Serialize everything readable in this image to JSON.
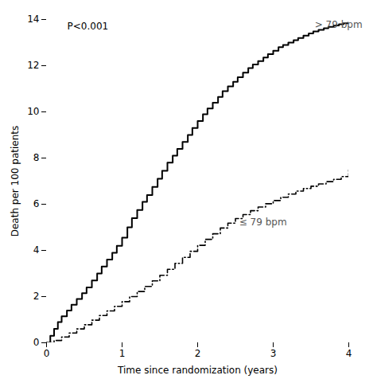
{
  "chart_data": {
    "type": "step",
    "xlabel": "Time since randomization (years)",
    "ylabel": "Death per 100 patients",
    "xlim": [
      0,
      4
    ],
    "ylim": [
      0,
      14
    ],
    "xticks": [
      0,
      1,
      2,
      3,
      4
    ],
    "yticks": [
      0,
      2,
      4,
      6,
      8,
      10,
      12,
      14
    ],
    "grid": false,
    "series": [
      {
        "color": "#000000",
        "line_style": "solid",
        "x": [
          0.0,
          0.05,
          0.1,
          0.15,
          0.2,
          0.27,
          0.33,
          0.4,
          0.47,
          0.53,
          0.6,
          0.67,
          0.73,
          0.8,
          0.87,
          0.93,
          1.0,
          1.07,
          1.13,
          1.2,
          1.27,
          1.33,
          1.4,
          1.47,
          1.53,
          1.6,
          1.67,
          1.73,
          1.8,
          1.87,
          1.93,
          2.0,
          2.07,
          2.13,
          2.2,
          2.27,
          2.33,
          2.4,
          2.47,
          2.53,
          2.6,
          2.67,
          2.73,
          2.8,
          2.87,
          2.93,
          3.0,
          3.07,
          3.13,
          3.2,
          3.27,
          3.33,
          3.4,
          3.47,
          3.53,
          3.6,
          3.67,
          3.73,
          3.8,
          3.87,
          3.93,
          4.0
        ],
        "values": [
          0.0,
          0.3,
          0.6,
          0.9,
          1.15,
          1.4,
          1.65,
          1.9,
          2.15,
          2.4,
          2.7,
          3.0,
          3.3,
          3.6,
          3.9,
          4.2,
          4.55,
          5.0,
          5.4,
          5.75,
          6.1,
          6.4,
          6.75,
          7.1,
          7.45,
          7.8,
          8.1,
          8.4,
          8.7,
          9.0,
          9.3,
          9.6,
          9.9,
          10.15,
          10.4,
          10.65,
          10.9,
          11.1,
          11.3,
          11.5,
          11.7,
          11.9,
          12.05,
          12.2,
          12.35,
          12.5,
          12.65,
          12.8,
          12.9,
          13.0,
          13.1,
          13.2,
          13.3,
          13.4,
          13.48,
          13.55,
          13.62,
          13.68,
          13.74,
          13.79,
          13.84,
          13.88
        ]
      },
      {
        "color": "#000000",
        "line_style": "dashdot",
        "x": [
          0.0,
          0.1,
          0.2,
          0.3,
          0.4,
          0.5,
          0.6,
          0.7,
          0.8,
          0.9,
          1.0,
          1.1,
          1.2,
          1.3,
          1.4,
          1.5,
          1.6,
          1.7,
          1.8,
          1.9,
          2.0,
          2.1,
          2.2,
          2.3,
          2.4,
          2.5,
          2.6,
          2.7,
          2.8,
          2.9,
          3.0,
          3.1,
          3.2,
          3.3,
          3.4,
          3.5,
          3.6,
          3.7,
          3.8,
          3.9,
          4.0
        ],
        "values": [
          0.0,
          0.1,
          0.25,
          0.42,
          0.6,
          0.78,
          0.98,
          1.18,
          1.38,
          1.58,
          1.78,
          2.0,
          2.22,
          2.44,
          2.68,
          2.92,
          3.18,
          3.44,
          3.7,
          3.96,
          4.22,
          4.48,
          4.72,
          4.97,
          5.18,
          5.38,
          5.55,
          5.72,
          5.88,
          6.02,
          6.16,
          6.3,
          6.44,
          6.57,
          6.68,
          6.78,
          6.88,
          6.98,
          7.08,
          7.2,
          7.55
        ]
      }
    ],
    "annotations": [
      {
        "text": "P<0.001"
      },
      {
        "text": "> 79 bpm",
        "x": 3.55,
        "y": 13.65
      },
      {
        "text": "≤ 79 bpm",
        "x": 2.55,
        "y": 5.1
      }
    ]
  }
}
